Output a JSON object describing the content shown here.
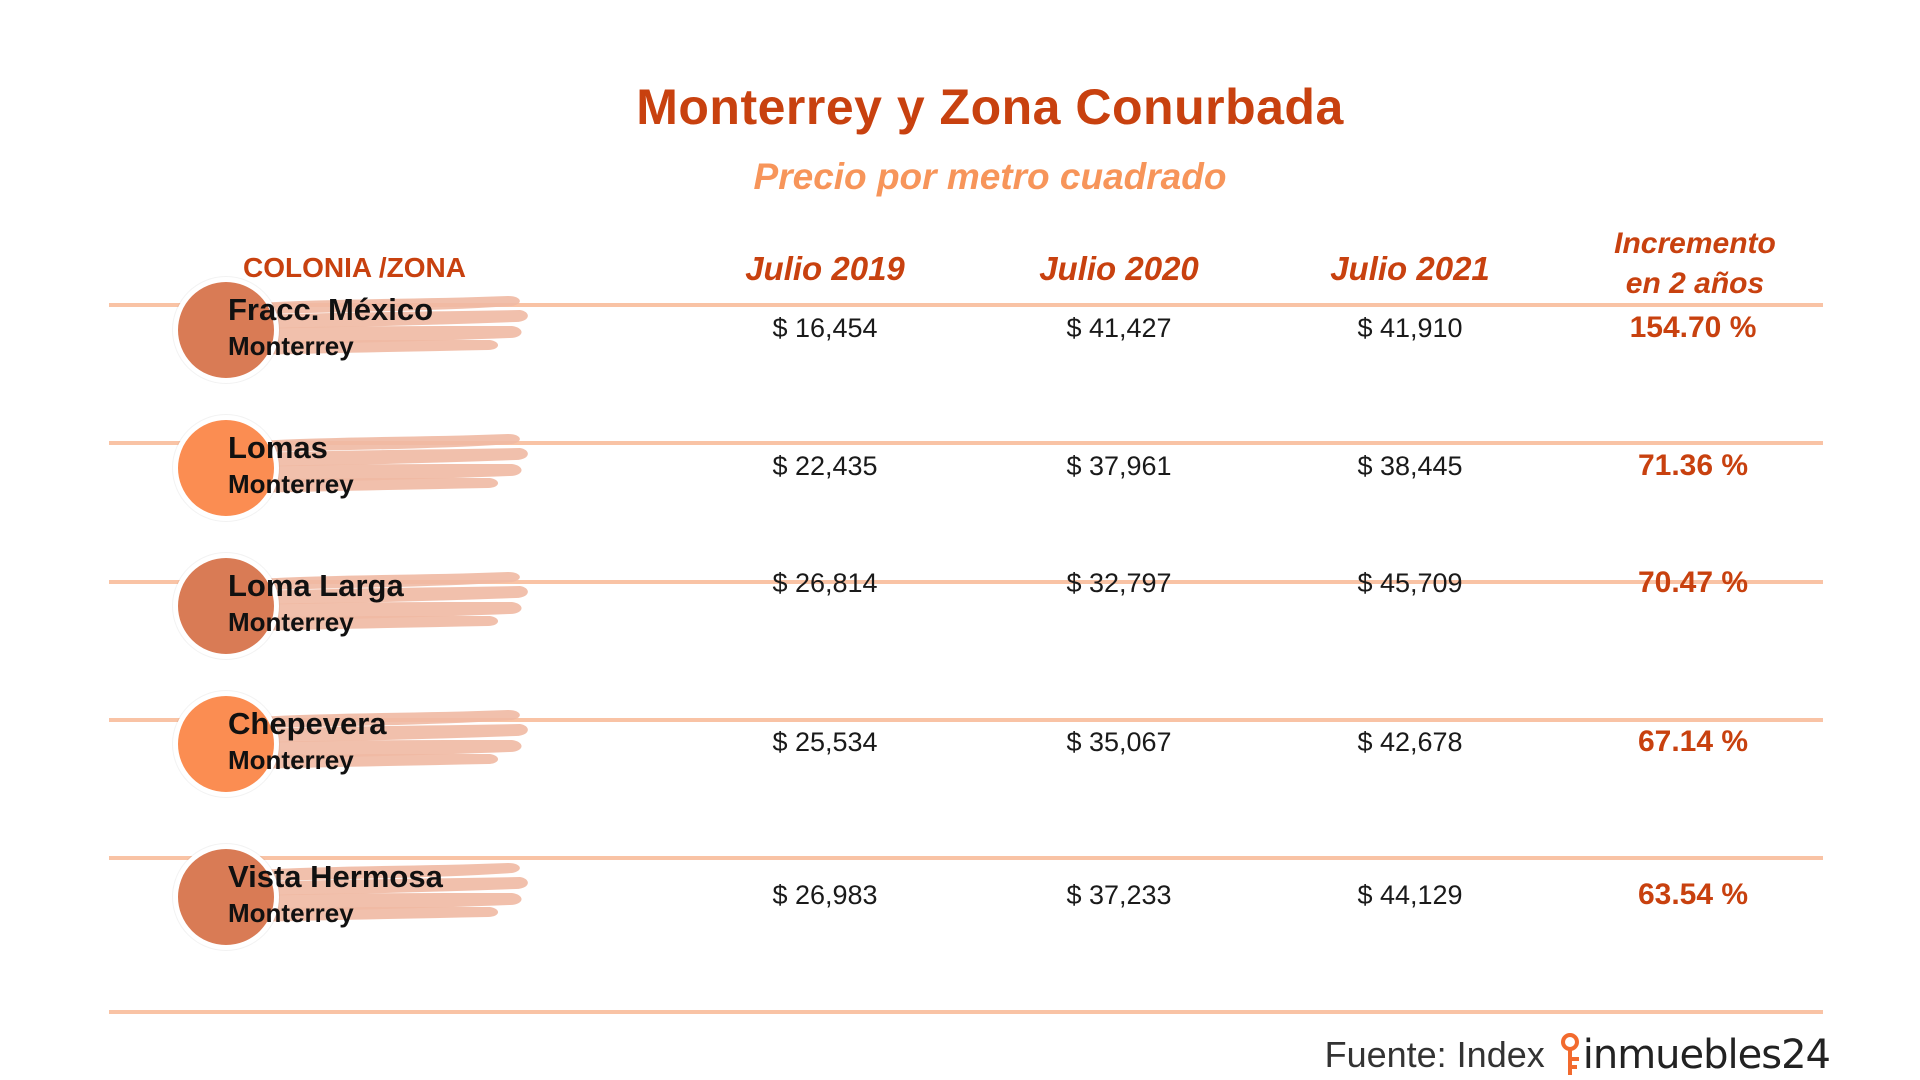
{
  "title": "Monterrey y Zona Conurbada",
  "subtitle": "Precio por metro cuadrado",
  "colors": {
    "accent": "#c8410f",
    "light_accent": "#f7955a",
    "rule": "#f9c3a5",
    "brush": "#efb9a3",
    "circle_a": "#d97b55",
    "circle_b": "#fb8d52"
  },
  "table": {
    "headers": {
      "colonia": "COLONIA /ZONA",
      "y2019": "Julio 2019",
      "y2020": "Julio 2020",
      "y2021": "Julio 2021",
      "increment_line1": "Incremento",
      "increment_line2": "en 2 años"
    },
    "rows": [
      {
        "name": "Fracc. México",
        "city": "Monterrey",
        "v2019": "$ 16,454",
        "v2020": "$ 41,427",
        "v2021": "$ 41,910",
        "increment": "154.70 %"
      },
      {
        "name": "Lomas",
        "city": "Monterrey",
        "v2019": "$ 22,435",
        "v2020": "$ 37,961",
        "v2021": "$ 38,445",
        "increment": "71.36 %"
      },
      {
        "name": "Loma Larga",
        "city": "Monterrey",
        "v2019": "$ 26,814",
        "v2020": "$ 32,797",
        "v2021": "$ 45,709",
        "increment": "70.47 %"
      },
      {
        "name": "Chepevera",
        "city": "Monterrey",
        "v2019": "$ 25,534",
        "v2020": "$ 35,067",
        "v2021": "$ 42,678",
        "increment": "67.14 %"
      },
      {
        "name": "Vista Hermosa",
        "city": "Monterrey",
        "v2019": "$ 26,983",
        "v2020": "$ 37,233",
        "v2021": "$ 44,129",
        "increment": "63.54 %"
      }
    ]
  },
  "chart_data": {
    "type": "table",
    "title": "Monterrey y Zona Conurbada",
    "subtitle": "Precio por metro cuadrado",
    "columns": [
      "COLONIA /ZONA",
      "Julio 2019",
      "Julio 2020",
      "Julio 2021",
      "Incremento en 2 años"
    ],
    "rows": [
      [
        "Fracc. México, Monterrey",
        16454,
        41427,
        41910,
        154.7
      ],
      [
        "Lomas, Monterrey",
        22435,
        37961,
        38445,
        71.36
      ],
      [
        "Loma Larga, Monterrey",
        26814,
        32797,
        45709,
        70.47
      ],
      [
        "Chepevera, Monterrey",
        25534,
        35067,
        42678,
        67.14
      ],
      [
        "Vista Hermosa, Monterrey",
        26983,
        37233,
        44129,
        63.54
      ]
    ]
  },
  "footer": {
    "source": "Fuente: Index",
    "brand": "inmuebles24",
    "brand_icon": "key-icon"
  }
}
